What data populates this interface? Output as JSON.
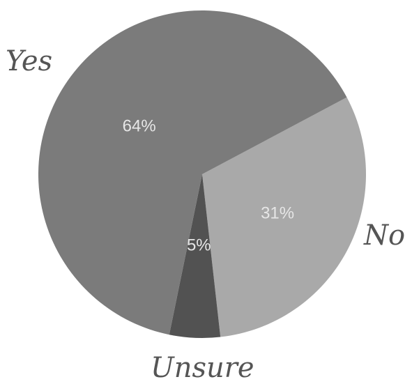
{
  "chart_data": {
    "type": "pie",
    "categories": [
      "Yes",
      "No",
      "Unsure"
    ],
    "values": [
      64,
      31,
      5
    ],
    "value_labels": [
      "64%",
      "31%",
      "5%"
    ],
    "colors": [
      "#7b7b7b",
      "#a9a9a9",
      "#525252"
    ],
    "label_color": "#555555",
    "title": "",
    "legend": "none"
  }
}
